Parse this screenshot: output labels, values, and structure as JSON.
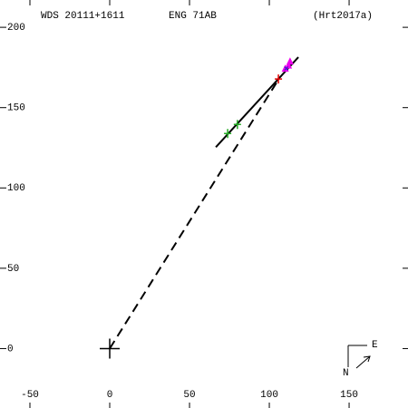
{
  "chart_data": {
    "type": "scatter",
    "header": [
      "WDS 20111+1611",
      "ENG  71AB",
      "(Hrt2017a)"
    ],
    "xlim": [
      -68.75,
      186.9
    ],
    "ylim": [
      -37,
      217
    ],
    "xticks": [
      -50,
      0,
      50,
      100,
      150
    ],
    "yticks": [
      0,
      50,
      100,
      150,
      200
    ],
    "compass": {
      "east": "E",
      "north": "N"
    },
    "series": [
      {
        "style": "solid",
        "color": "#000000",
        "x": [
          66.5,
          118.2
        ],
        "values": [
          125.4,
          181.4
        ]
      },
      {
        "style": "dashed",
        "color": "#000000",
        "x": [
          0,
          104.5
        ],
        "values": [
          0,
          165.5
        ]
      },
      {
        "style": "primary",
        "color": "#000000",
        "x": [
          0
        ],
        "values": [
          0
        ]
      },
      {
        "style": "plus",
        "color": "#22aa22",
        "x": [
          73.9,
          80
        ],
        "values": [
          133.9,
          139.5
        ]
      },
      {
        "style": "plus",
        "color": "#dd0000",
        "x": [
          105.7
        ],
        "values": [
          167.8
        ]
      },
      {
        "style": "triangle",
        "color": "#ee00ee",
        "x": [
          110,
          112,
          113
        ],
        "values": [
          174,
          176,
          178.5
        ]
      },
      {
        "style": "cross",
        "color": "#2222cc",
        "x": [
          110.6
        ],
        "values": [
          174.4
        ]
      }
    ]
  }
}
